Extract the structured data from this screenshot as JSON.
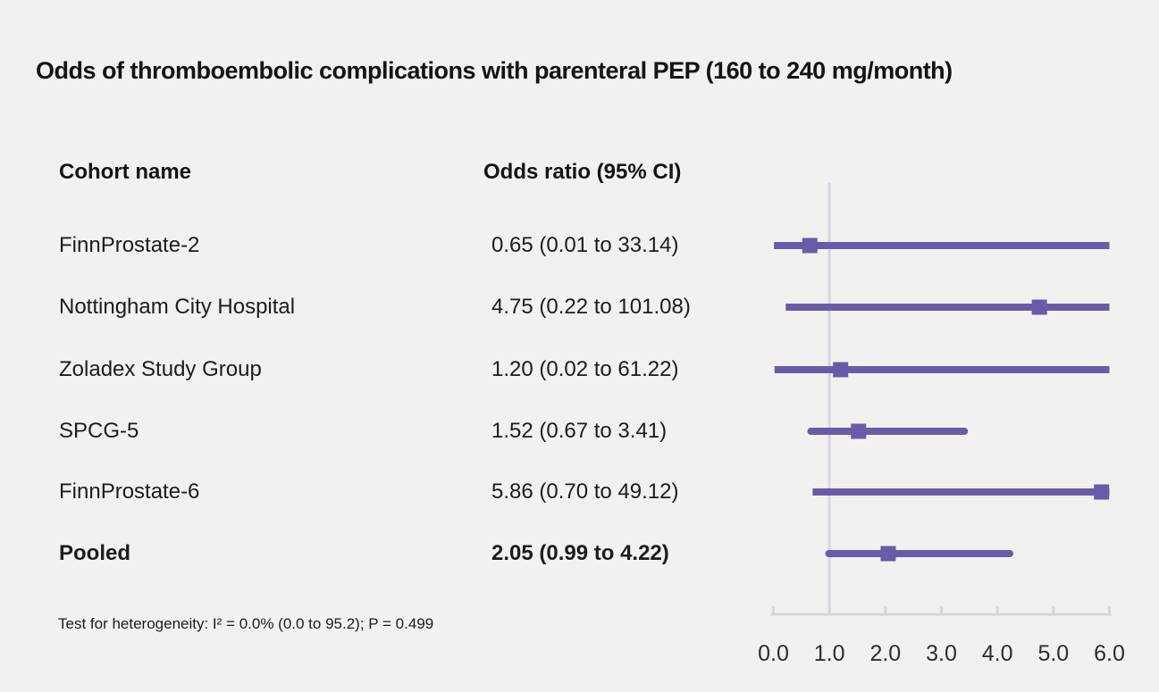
{
  "title": "Odds of thromboembolic complications with parenteral PEP (160 to 240 mg/month)",
  "columns": {
    "cohort": "Cohort name",
    "odds": "Odds ratio (95% CI)"
  },
  "footnote": "Test for heterogeneity: I² = 0.0% (0.0 to 95.2); P = 0.499",
  "colors": {
    "marker_purple": "#6b5aa7",
    "axis_gray": "#d4d9e0",
    "tick_label": "#2e2e2e",
    "background": "#f2f1f0",
    "text": "#1c1c1c"
  },
  "chart_data": {
    "type": "forest",
    "title": "Odds of thromboembolic complications with parenteral PEP (160 to 240 mg/month)",
    "xlabel": "",
    "ylabel": "",
    "xlim": [
      0.0,
      6.0
    ],
    "reference_line": 1.0,
    "xticks": [
      0.0,
      1.0,
      2.0,
      3.0,
      4.0,
      5.0,
      6.0
    ],
    "xtick_labels": [
      "0.0",
      "1.0",
      "2.0",
      "3.0",
      "4.0",
      "5.0",
      "6.0"
    ],
    "grid": false,
    "legend": "none",
    "rows": [
      {
        "name": "FinnProstate-2",
        "value": "0.65 (0.01 to 33.14)",
        "or": 0.65,
        "ci_low": 0.01,
        "ci_high": 33.14,
        "bold": false
      },
      {
        "name": "Nottingham City Hospital",
        "value": "4.75 (0.22 to 101.08)",
        "or": 4.75,
        "ci_low": 0.22,
        "ci_high": 101.08,
        "bold": false
      },
      {
        "name": "Zoladex Study Group",
        "value": "1.20 (0.02 to 61.22)",
        "or": 1.2,
        "ci_low": 0.02,
        "ci_high": 61.22,
        "bold": false
      },
      {
        "name": "SPCG-5",
        "value": "1.52 (0.67 to 3.41)",
        "or": 1.52,
        "ci_low": 0.67,
        "ci_high": 3.41,
        "bold": false
      },
      {
        "name": "FinnProstate-6",
        "value": "5.86 (0.70 to 49.12)",
        "or": 5.86,
        "ci_low": 0.7,
        "ci_high": 49.12,
        "bold": false
      },
      {
        "name": "Pooled",
        "value": "2.05 (0.99 to 4.22)",
        "or": 2.05,
        "ci_low": 0.99,
        "ci_high": 4.22,
        "bold": true
      }
    ]
  }
}
